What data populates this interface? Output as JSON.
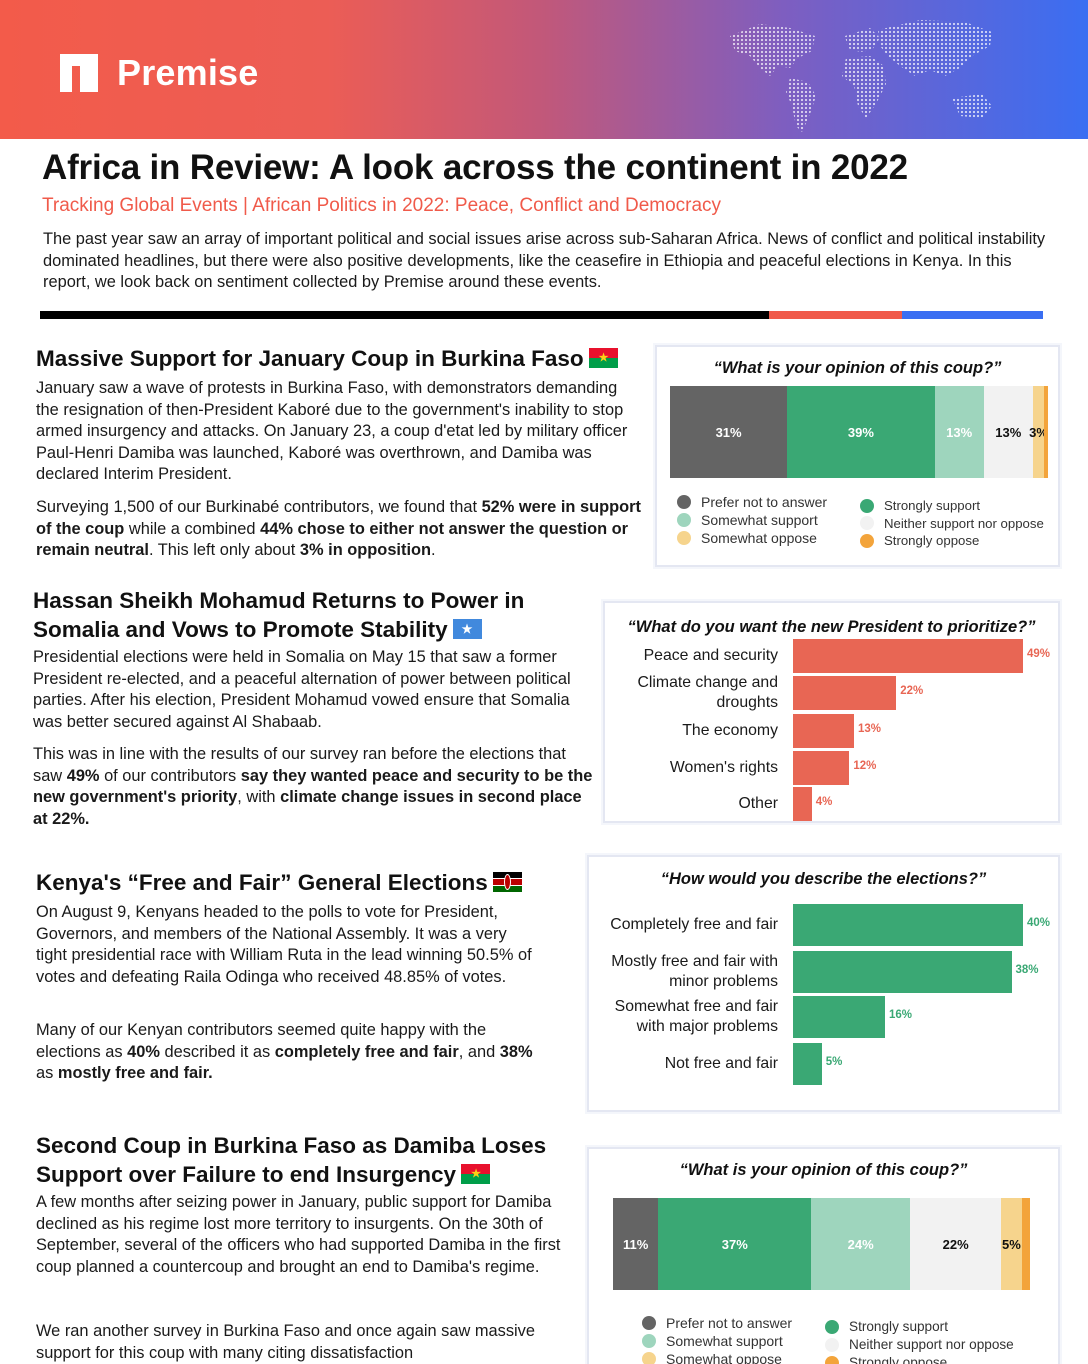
{
  "brand": {
    "name": "Premise",
    "colors": {
      "red": "#f05a4a",
      "blue": "#3a6ef2"
    }
  },
  "header": {
    "title": "Africa in Review: A look across the continent in 2022",
    "subtitle": "Tracking Global Events | African Politics in 2022: Peace, Conflict and Democracy",
    "intro": "The past year saw an array of important political and social issues arise across sub-Saharan Africa. News of conflict and political instability dominated headlines, but there were also positive developments, like the ceasefire in Ethiopia and peaceful elections in Kenya. In this report, we look back on sentiment collected by Premise around these events."
  },
  "sections": [
    {
      "title": "Massive Support for January Coup in Burkina Faso",
      "flag": "burkina-faso-flag",
      "p1": "January saw a wave of protests in Burkina Faso, with demonstrators demanding the resignation of then-President Kaboré due to the government's inability to stop armed insurgency and attacks. On January 23, a coup d'etat led by military officer Paul-Henri Damiba was launched, Kaboré was overthrown, and Damiba was declared Interim President.",
      "p2": [
        {
          "t": "Surveying 1,500 of our Burkinabé contributors, we found that "
        },
        {
          "t": "52% were in support of the coup",
          "b": true
        },
        {
          "t": " while a combined "
        },
        {
          "t": "44% chose to either not answer the question or remain neutral",
          "b": true
        },
        {
          "t": ". This left only about "
        },
        {
          "t": "3% in opposition",
          "b": true
        },
        {
          "t": "."
        }
      ]
    },
    {
      "title": "Hassan Sheikh Mohamud Returns to Power in Somalia and Vows to Promote Stability",
      "flag": "somalia-flag",
      "p1": "Presidential elections were held in Somalia on May 15 that saw a former President re-elected, and a peaceful alternation of power between political parties. After his election, President Mohamud vowed ensure that Somalia was better secured against Al Shabaab.",
      "p2": [
        {
          "t": "This was in line with the results of our survey ran before the elections that saw "
        },
        {
          "t": "49%",
          "b": true
        },
        {
          "t": " of our contributors "
        },
        {
          "t": "say they wanted peace and security to be the new government's priority",
          "b": true
        },
        {
          "t": ", with "
        },
        {
          "t": "climate change issues in second place at 22%.",
          "b": true
        }
      ]
    },
    {
      "title": "Kenya's “Free and Fair” General Elections",
      "flag": "kenya-flag",
      "p1": "On August 9, Kenyans headed to the polls to vote for President, Governors, and members of the National Assembly. It was a very tight presidential race with William Ruta in the lead winning 50.5% of votes and defeating Raila Odinga who received 48.85% of votes.",
      "p2": [
        {
          "t": "Many of our Kenyan contributors seemed quite happy with the elections as "
        },
        {
          "t": "40%",
          "b": true
        },
        {
          "t": " described it as "
        },
        {
          "t": "completely free and fair",
          "b": true
        },
        {
          "t": ", and "
        },
        {
          "t": "38%",
          "b": true
        },
        {
          "t": " as "
        },
        {
          "t": "mostly free and fair.",
          "b": true
        }
      ]
    },
    {
      "title": "Second Coup in Burkina Faso as Damiba Loses Support over Failure to end Insurgency",
      "flag": "burkina-faso-flag",
      "p1": "A few months after seizing power in January, public support for Damiba declined as his regime lost more territory to insurgents. On the 30th of September, several of the officers who had supported Damiba in the first coup planned a countercoup and brought an end to Damiba's regime.",
      "p2": [
        {
          "t": "We ran another survey in Burkina Faso and once again saw massive support for this coup with many citing dissatisfaction"
        }
      ]
    }
  ],
  "legend_categories": [
    {
      "name": "Prefer not to answer",
      "color": "#646464"
    },
    {
      "name": "Somewhat support",
      "color": "#9ed5bd"
    },
    {
      "name": "Somewhat oppose",
      "color": "#f6d48d"
    },
    {
      "name": "Strongly support",
      "color": "#3aa874"
    },
    {
      "name": "Neither support nor oppose",
      "color": "#f2f2f2"
    },
    {
      "name": "Strongly oppose",
      "color": "#f3a43b"
    }
  ],
  "chart_data": [
    {
      "type": "bar",
      "stacked": true,
      "orientation": "horizontal",
      "title": "“What is your opinion of this coup?”",
      "series": [
        {
          "name": "Prefer not to answer",
          "values": [
            31
          ],
          "label": "31%"
        },
        {
          "name": "Strongly support",
          "values": [
            39
          ],
          "label": "39%"
        },
        {
          "name": "Somewhat support",
          "values": [
            13
          ],
          "label": "13%"
        },
        {
          "name": "Neither support nor oppose",
          "values": [
            13
          ],
          "label": "13%"
        },
        {
          "name": "Somewhat oppose",
          "values": [
            3
          ],
          "label": "3%"
        },
        {
          "name": "Strongly oppose",
          "values": [
            1
          ],
          "label": ""
        }
      ],
      "legend": "bottom"
    },
    {
      "type": "bar",
      "orientation": "horizontal",
      "title": "“What do you want the new President to prioritize?”",
      "categories": [
        "Peace and security",
        "Climate change and droughts",
        "The economy",
        "Women's rights",
        "Other"
      ],
      "values": [
        49,
        22,
        13,
        12,
        4
      ],
      "labels": [
        "49%",
        "22%",
        "13%",
        "12%",
        "4%"
      ],
      "color": "#e86654"
    },
    {
      "type": "bar",
      "orientation": "horizontal",
      "title": "“How would you describe the elections?”",
      "categories": [
        "Completely free and fair",
        "Mostly free and fair with minor problems",
        "Somewhat free and fair with major problems",
        "Not free and fair"
      ],
      "values": [
        40,
        38,
        16,
        5
      ],
      "labels": [
        "40%",
        "38%",
        "16%",
        "5%"
      ],
      "color": "#3aa874"
    },
    {
      "type": "bar",
      "stacked": true,
      "orientation": "horizontal",
      "title": "“What is your opinion of this coup?”",
      "series": [
        {
          "name": "Prefer not to answer",
          "values": [
            11
          ],
          "label": "11%"
        },
        {
          "name": "Strongly support",
          "values": [
            37
          ],
          "label": "37%"
        },
        {
          "name": "Somewhat support",
          "values": [
            24
          ],
          "label": "24%"
        },
        {
          "name": "Neither support nor oppose",
          "values": [
            22
          ],
          "label": "22%"
        },
        {
          "name": "Somewhat oppose",
          "values": [
            5
          ],
          "label": "5%"
        },
        {
          "name": "Strongly oppose",
          "values": [
            2
          ],
          "label": ""
        }
      ],
      "legend": "bottom"
    }
  ]
}
